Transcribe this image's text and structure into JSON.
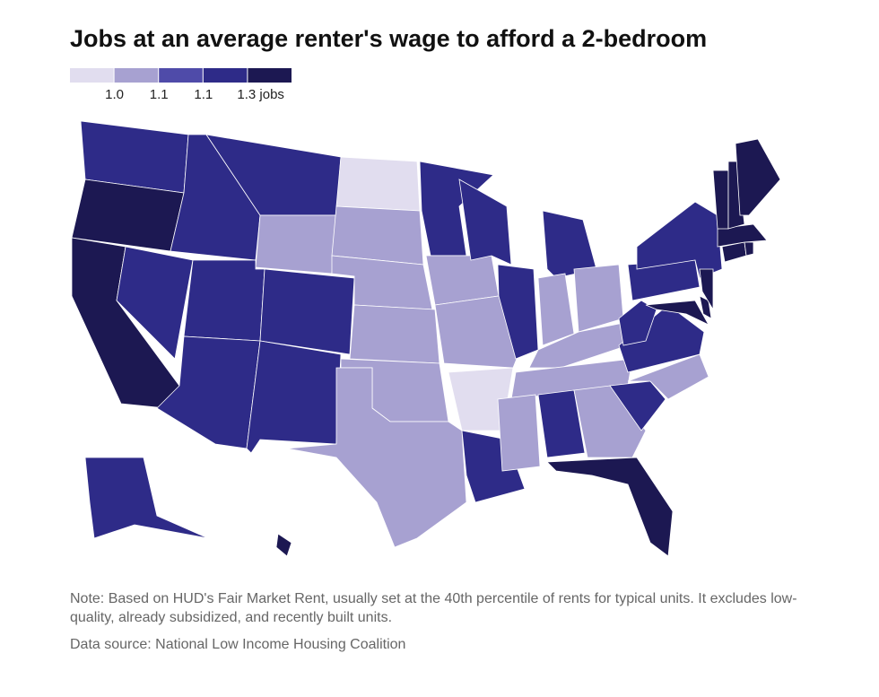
{
  "chart_data": {
    "type": "choropleth",
    "title": "Jobs at an average renter's wage to afford a 2-bedroom",
    "legend_colors": [
      "#e1ddef",
      "#a7a1d1",
      "#4f4ba9",
      "#2e2b88",
      "#1c1852"
    ],
    "legend_ticks": [
      {
        "value": 1.0,
        "label": "1.0"
      },
      1.1,
      1.1,
      {
        "value": 1.3,
        "label": "1.3 jobs"
      }
    ],
    "levels": [
      3,
      4,
      4,
      3,
      3,
      3,
      1,
      3,
      3,
      3,
      3,
      0,
      1,
      1,
      1,
      1,
      1,
      3,
      1,
      1,
      0,
      3,
      3,
      3,
      3,
      1,
      1,
      1,
      1,
      1,
      3,
      1,
      4,
      3,
      1,
      3,
      3,
      3,
      3,
      4,
      4,
      4,
      4,
      4,
      4,
      4,
      4,
      4,
      3,
      4
    ],
    "note": "Note: Based on HUD's Fair Market Rent, usually set at the 40th percentile of rents for typical units. It excludes low-quality, already subsidized, and recently built units.",
    "source": "Data source: National Low Income Housing Coalition"
  }
}
